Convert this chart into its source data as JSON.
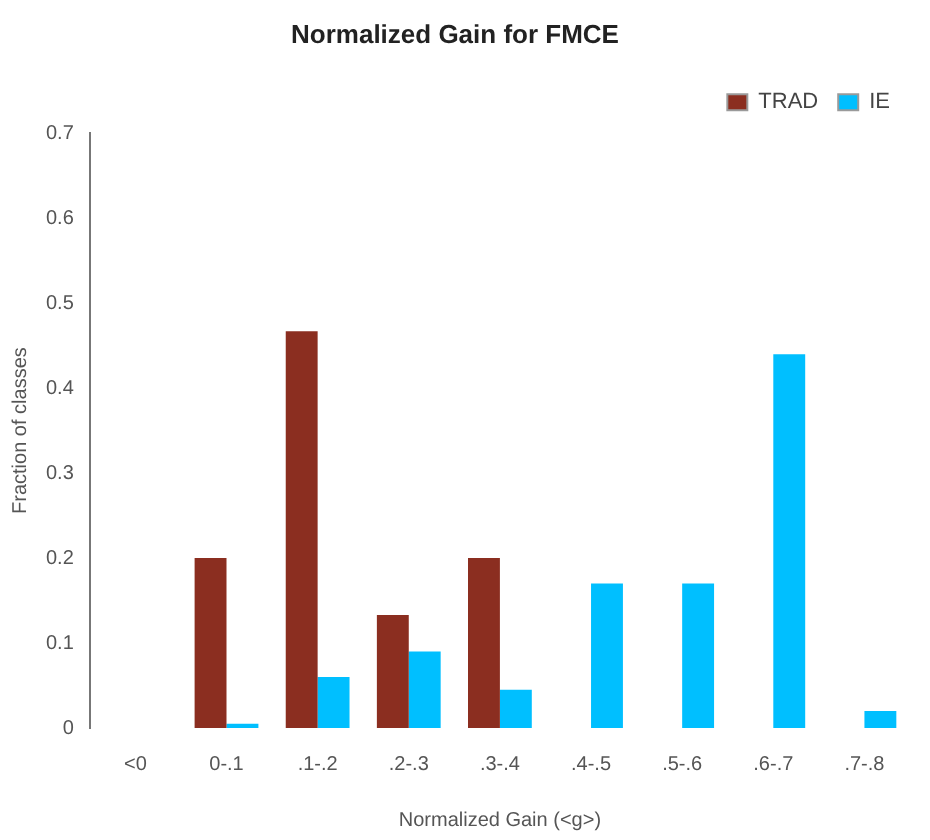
{
  "chart_data": {
    "type": "bar",
    "title": "Normalized Gain for FMCE",
    "xlabel": "Normalized Gain (<g>)",
    "ylabel": "Fraction of classes",
    "categories": [
      "<0",
      "0-.1",
      ".1-.2",
      ".2-.3",
      ".3-.4",
      ".4-.5",
      ".5-.6",
      ".6-.7",
      ".7-.8"
    ],
    "series": [
      {
        "name": "TRAD",
        "color": "#8b2e20",
        "values": [
          0,
          0.2,
          0.467,
          0.133,
          0.2,
          0,
          0,
          0,
          0
        ]
      },
      {
        "name": "IE",
        "color": "#00bfff",
        "values": [
          0,
          0.005,
          0.06,
          0.09,
          0.045,
          0.17,
          0.17,
          0.44,
          0.02
        ]
      }
    ],
    "ylim": [
      0,
      0.7
    ],
    "yticks": [
      0,
      0.1,
      0.2,
      0.3,
      0.4,
      0.5,
      0.6,
      0.7
    ],
    "grid": false,
    "legend": "top right"
  }
}
